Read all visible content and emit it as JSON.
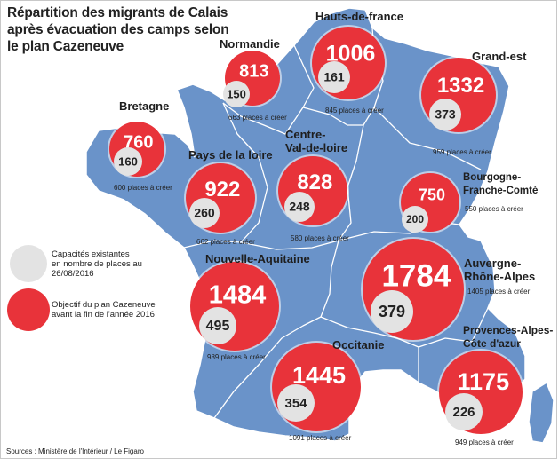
{
  "title": "Répartition des migrants de Calais après évacuation des camps selon le plan Cazeneuve",
  "colors": {
    "map_fill": "#6a93c9",
    "region_border": "#ffffff",
    "objective_circle": "#e8333a",
    "existing_circle": "#e3e3e3"
  },
  "legend": {
    "existing": "Capacités existantes en nombre de places au 26/08/2016",
    "existing_lines": [
      "Capacités existantes",
      "en nombre de places au",
      "26/08/2016"
    ],
    "objective": "Objectif du plan Cazeneuve avant la fin de l'année 2016",
    "objective_lines": [
      "Objectif du plan Cazeneuve",
      "avant la fin de l'année 2016"
    ]
  },
  "regions": [
    {
      "id": "normandie",
      "name_lines": [
        "Normandie"
      ],
      "objective": "813",
      "existing": "150",
      "places": "663 places à créer"
    },
    {
      "id": "hauts-de-france",
      "name_lines": [
        "Hauts-de-france"
      ],
      "objective": "1006",
      "existing": "161",
      "places": "845 places à créer"
    },
    {
      "id": "grand-est",
      "name_lines": [
        "Grand-est"
      ],
      "objective": "1332",
      "existing": "373",
      "places": "959 places à créer"
    },
    {
      "id": "bretagne",
      "name_lines": [
        "Bretagne"
      ],
      "objective": "760",
      "existing": "160",
      "places": "600 places à créer"
    },
    {
      "id": "pays-de-la-loire",
      "name_lines": [
        "Pays de la loire"
      ],
      "objective": "922",
      "existing": "260",
      "places": "662 places à créer"
    },
    {
      "id": "centre-val-de-loire",
      "name_lines": [
        "Centre-",
        "Val-de-loire"
      ],
      "objective": "828",
      "existing": "248",
      "places": "580 places à créer"
    },
    {
      "id": "bourgogne-franche-comte",
      "name_lines": [
        "Bourgogne-",
        "Franche-Comté"
      ],
      "objective": "750",
      "existing": "200",
      "places": "550 places à créer"
    },
    {
      "id": "nouvelle-aquitaine",
      "name_lines": [
        "Nouvelle-Aquitaine"
      ],
      "objective": "1484",
      "existing": "495",
      "places": "989 places à créer"
    },
    {
      "id": "auvergne-rhone-alpes",
      "name_lines": [
        "Auvergne-",
        "Rhône-Alpes"
      ],
      "objective": "1784",
      "existing": "379",
      "places": "1405 places à créer"
    },
    {
      "id": "occitanie",
      "name_lines": [
        "Occitanie"
      ],
      "objective": "1445",
      "existing": "354",
      "places": "1091 places à créer"
    },
    {
      "id": "paca",
      "name_lines": [
        "Provences-Alpes-",
        "Côte d'azur"
      ],
      "objective": "1175",
      "existing": "226",
      "places": "949 places à créer"
    }
  ],
  "source": "Sources : Ministère de l'Intérieur / Le Figaro"
}
